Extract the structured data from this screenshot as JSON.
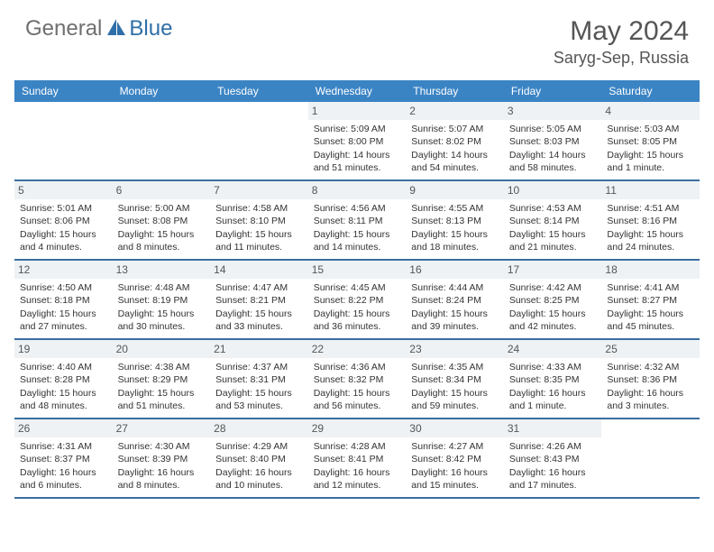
{
  "brand": {
    "part1": "General",
    "part2": "Blue"
  },
  "title": "May 2024",
  "location": "Saryg-Sep, Russia",
  "colors": {
    "header_bg": "#3b84c4",
    "row_border": "#3b6fa0",
    "daynum_bg": "#eef2f5",
    "logo_gray": "#6f6f6f",
    "logo_blue": "#2f6fa8"
  },
  "daysOfWeek": [
    "Sunday",
    "Monday",
    "Tuesday",
    "Wednesday",
    "Thursday",
    "Friday",
    "Saturday"
  ],
  "weeks": [
    [
      null,
      null,
      null,
      {
        "n": "1",
        "sr": "5:09 AM",
        "ss": "8:00 PM",
        "dl": "14 hours and 51 minutes."
      },
      {
        "n": "2",
        "sr": "5:07 AM",
        "ss": "8:02 PM",
        "dl": "14 hours and 54 minutes."
      },
      {
        "n": "3",
        "sr": "5:05 AM",
        "ss": "8:03 PM",
        "dl": "14 hours and 58 minutes."
      },
      {
        "n": "4",
        "sr": "5:03 AM",
        "ss": "8:05 PM",
        "dl": "15 hours and 1 minute."
      }
    ],
    [
      {
        "n": "5",
        "sr": "5:01 AM",
        "ss": "8:06 PM",
        "dl": "15 hours and 4 minutes."
      },
      {
        "n": "6",
        "sr": "5:00 AM",
        "ss": "8:08 PM",
        "dl": "15 hours and 8 minutes."
      },
      {
        "n": "7",
        "sr": "4:58 AM",
        "ss": "8:10 PM",
        "dl": "15 hours and 11 minutes."
      },
      {
        "n": "8",
        "sr": "4:56 AM",
        "ss": "8:11 PM",
        "dl": "15 hours and 14 minutes."
      },
      {
        "n": "9",
        "sr": "4:55 AM",
        "ss": "8:13 PM",
        "dl": "15 hours and 18 minutes."
      },
      {
        "n": "10",
        "sr": "4:53 AM",
        "ss": "8:14 PM",
        "dl": "15 hours and 21 minutes."
      },
      {
        "n": "11",
        "sr": "4:51 AM",
        "ss": "8:16 PM",
        "dl": "15 hours and 24 minutes."
      }
    ],
    [
      {
        "n": "12",
        "sr": "4:50 AM",
        "ss": "8:18 PM",
        "dl": "15 hours and 27 minutes."
      },
      {
        "n": "13",
        "sr": "4:48 AM",
        "ss": "8:19 PM",
        "dl": "15 hours and 30 minutes."
      },
      {
        "n": "14",
        "sr": "4:47 AM",
        "ss": "8:21 PM",
        "dl": "15 hours and 33 minutes."
      },
      {
        "n": "15",
        "sr": "4:45 AM",
        "ss": "8:22 PM",
        "dl": "15 hours and 36 minutes."
      },
      {
        "n": "16",
        "sr": "4:44 AM",
        "ss": "8:24 PM",
        "dl": "15 hours and 39 minutes."
      },
      {
        "n": "17",
        "sr": "4:42 AM",
        "ss": "8:25 PM",
        "dl": "15 hours and 42 minutes."
      },
      {
        "n": "18",
        "sr": "4:41 AM",
        "ss": "8:27 PM",
        "dl": "15 hours and 45 minutes."
      }
    ],
    [
      {
        "n": "19",
        "sr": "4:40 AM",
        "ss": "8:28 PM",
        "dl": "15 hours and 48 minutes."
      },
      {
        "n": "20",
        "sr": "4:38 AM",
        "ss": "8:29 PM",
        "dl": "15 hours and 51 minutes."
      },
      {
        "n": "21",
        "sr": "4:37 AM",
        "ss": "8:31 PM",
        "dl": "15 hours and 53 minutes."
      },
      {
        "n": "22",
        "sr": "4:36 AM",
        "ss": "8:32 PM",
        "dl": "15 hours and 56 minutes."
      },
      {
        "n": "23",
        "sr": "4:35 AM",
        "ss": "8:34 PM",
        "dl": "15 hours and 59 minutes."
      },
      {
        "n": "24",
        "sr": "4:33 AM",
        "ss": "8:35 PM",
        "dl": "16 hours and 1 minute."
      },
      {
        "n": "25",
        "sr": "4:32 AM",
        "ss": "8:36 PM",
        "dl": "16 hours and 3 minutes."
      }
    ],
    [
      {
        "n": "26",
        "sr": "4:31 AM",
        "ss": "8:37 PM",
        "dl": "16 hours and 6 minutes."
      },
      {
        "n": "27",
        "sr": "4:30 AM",
        "ss": "8:39 PM",
        "dl": "16 hours and 8 minutes."
      },
      {
        "n": "28",
        "sr": "4:29 AM",
        "ss": "8:40 PM",
        "dl": "16 hours and 10 minutes."
      },
      {
        "n": "29",
        "sr": "4:28 AM",
        "ss": "8:41 PM",
        "dl": "16 hours and 12 minutes."
      },
      {
        "n": "30",
        "sr": "4:27 AM",
        "ss": "8:42 PM",
        "dl": "16 hours and 15 minutes."
      },
      {
        "n": "31",
        "sr": "4:26 AM",
        "ss": "8:43 PM",
        "dl": "16 hours and 17 minutes."
      },
      null
    ]
  ],
  "labels": {
    "sunrise": "Sunrise:",
    "sunset": "Sunset:",
    "daylight": "Daylight:"
  }
}
